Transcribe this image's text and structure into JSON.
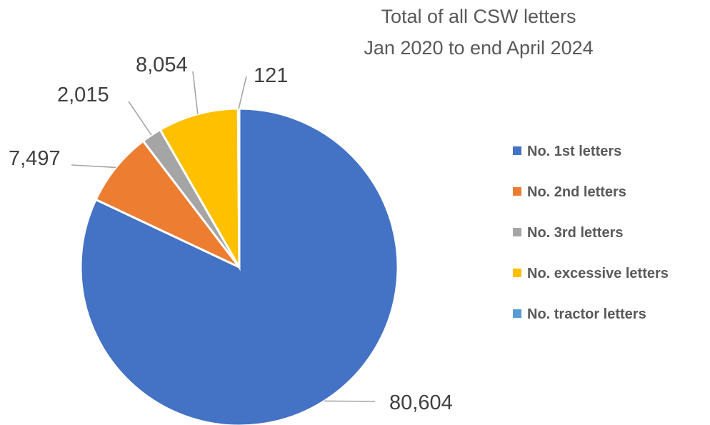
{
  "chart_data": {
    "type": "pie",
    "title": [
      "Total of all CSW letters",
      "Jan 2020 to end April 2024"
    ],
    "categories": [
      "No. 1st letters",
      "No. 2nd letters",
      "No. 3rd letters",
      "No. excessive letters",
      "No. tractor letters"
    ],
    "values": [
      80604,
      7497,
      2015,
      8054,
      121
    ],
    "data_labels": [
      "80,604",
      "7,497",
      "2,015",
      "8,054",
      "121"
    ],
    "colors": [
      "#4472C4",
      "#ED7D31",
      "#A5A5A5",
      "#FFC000",
      "#5B9BD5"
    ],
    "legend_position": "right"
  }
}
